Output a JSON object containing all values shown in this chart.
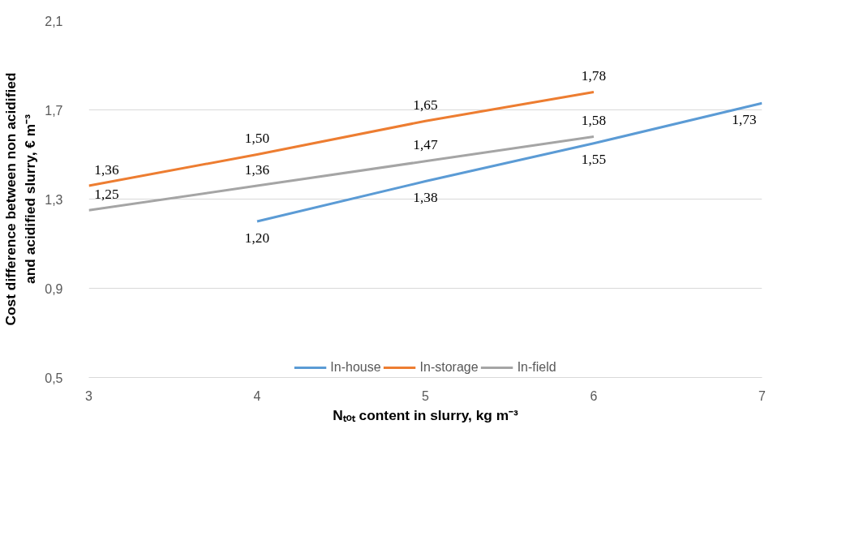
{
  "chart_data": {
    "type": "line",
    "xlabel": "Nₜₒₜ content in slurry, kg m⁻³",
    "ylabel": "Cost difference between non acidified\nand acidified slurry, € m⁻³",
    "series": [
      {
        "name": "In-house",
        "color": "#5b9bd5",
        "x": [
          4,
          5,
          6,
          7
        ],
        "values": [
          1.2,
          1.38,
          1.55,
          1.73
        ],
        "value_labels": [
          "1,20",
          "1,38",
          "1,55",
          "1,73"
        ]
      },
      {
        "name": "In-storage",
        "color": "#ed7d31",
        "x": [
          3,
          4,
          5,
          6
        ],
        "values": [
          1.36,
          1.5,
          1.65,
          1.78
        ],
        "value_labels": [
          "1,36",
          "1,50",
          "1,65",
          "1,78"
        ]
      },
      {
        "name": "In-field",
        "color": "#a5a5a5",
        "x": [
          3,
          4,
          5,
          6
        ],
        "values": [
          1.25,
          1.36,
          1.47,
          1.58
        ],
        "value_labels": [
          "1,25",
          "1,36",
          "1,47",
          "1,58"
        ]
      }
    ],
    "xlim": [
      3,
      7
    ],
    "xticks": [
      3,
      4,
      5,
      6,
      7
    ],
    "ylim": [
      0.5,
      2.1
    ],
    "yticks": [
      {
        "value": 0.5,
        "label": "0,5"
      },
      {
        "value": 0.9,
        "label": "0,9"
      },
      {
        "value": 1.3,
        "label": "1,3"
      },
      {
        "value": 1.7,
        "label": "1,7"
      },
      {
        "value": 2.1,
        "label": "2,1"
      }
    ],
    "grid": "y",
    "legend": "bottom",
    "marker": "none",
    "line_style": "solid"
  }
}
